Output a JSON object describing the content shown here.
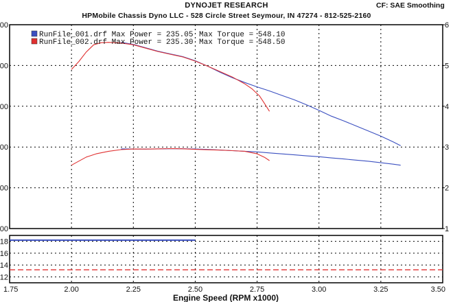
{
  "header": {
    "title": "DYNOJET RESEARCH",
    "subtitle": "HPMobile Chassis Dyno LLC - 528 Circle Street Seymour, IN 47274 - 812-525-2160",
    "correction": "CF: SAE  Smoothing"
  },
  "legend": [
    {
      "label": "RunFile_001.drf Max Power = 235.05",
      "torque": "Max Torque = 548.10",
      "color": "#3a4fc0"
    },
    {
      "label": "RunFile_002.drf Max Power = 235.30",
      "torque": "Max Torque = 548.50",
      "color": "#e03030"
    }
  ],
  "chart_data": [
    {
      "type": "line",
      "xlabel": "Engine Speed (RPM x1000)",
      "xlim": [
        1.75,
        3.5
      ],
      "x_ticks": [
        "1.75",
        "2.00",
        "2.25",
        "2.50",
        "2.75",
        "3.00",
        "3.25",
        "3.50"
      ],
      "left_ticks": [
        "00",
        "00",
        "00",
        "00",
        "00",
        "00"
      ],
      "right_ticks": [
        "6",
        "5",
        "4",
        "3",
        "2",
        "1"
      ],
      "ylim": [
        0,
        600
      ],
      "grid": true,
      "legend_position": "top-left",
      "series": [
        {
          "name": "RunFile_001.drf",
          "color": "#3a4fc0",
          "group": "torque",
          "x": [
            2.2,
            2.25,
            2.3,
            2.35,
            2.4,
            2.45,
            2.5,
            2.55,
            2.6,
            2.65,
            2.7,
            2.75,
            2.8,
            2.85,
            2.9,
            2.95,
            3.0,
            3.05,
            3.1,
            3.15,
            3.2,
            3.25,
            3.3,
            3.33
          ],
          "y": [
            548,
            542,
            532,
            522,
            514,
            506,
            494,
            478,
            460,
            444,
            430,
            417,
            405,
            392,
            379,
            364,
            348,
            331,
            317,
            302,
            287,
            272,
            255,
            244
          ]
        },
        {
          "name": "RunFile_002.drf",
          "color": "#e03030",
          "group": "torque",
          "x": [
            2.0,
            2.03,
            2.06,
            2.09,
            2.12,
            2.15,
            2.2,
            2.25,
            2.3,
            2.35,
            2.4,
            2.45,
            2.5,
            2.55,
            2.6,
            2.65,
            2.7,
            2.73,
            2.76,
            2.78,
            2.8
          ],
          "y": [
            468,
            492,
            520,
            541,
            547,
            548,
            546,
            541,
            531,
            521,
            513,
            505,
            493,
            478,
            462,
            446,
            426,
            411,
            390,
            368,
            345
          ]
        },
        {
          "name": "RunFile_001.drf",
          "color": "#3a4fc0",
          "group": "power",
          "x": [
            2.2,
            2.25,
            2.3,
            2.35,
            2.4,
            2.45,
            2.5,
            2.55,
            2.6,
            2.65,
            2.7,
            2.75,
            2.8,
            2.85,
            2.9,
            2.95,
            3.0,
            3.05,
            3.1,
            3.15,
            3.2,
            3.25,
            3.3,
            3.33
          ],
          "y": [
            234.5,
            234.2,
            234.0,
            234.6,
            235.0,
            235.05,
            234.2,
            233.0,
            231.2,
            229.3,
            227.5,
            225.6,
            222.7,
            219.8,
            216.9,
            214.0,
            211.6,
            207.8,
            204.9,
            201.5,
            198.1,
            193.7,
            189.4,
            186.5
          ]
        },
        {
          "name": "RunFile_002.drf",
          "color": "#e03030",
          "group": "power",
          "x": [
            2.0,
            2.03,
            2.06,
            2.1,
            2.15,
            2.2,
            2.25,
            2.3,
            2.35,
            2.4,
            2.45,
            2.5,
            2.55,
            2.6,
            2.65,
            2.7,
            2.75,
            2.78,
            2.8
          ],
          "y": [
            186.5,
            198.5,
            210.6,
            220.0,
            227.5,
            232.3,
            234.2,
            234.0,
            234.6,
            235.3,
            234.8,
            233.2,
            232.0,
            231.0,
            229.3,
            227.5,
            220.0,
            209.6,
            200.0
          ]
        }
      ]
    },
    {
      "type": "line",
      "left_ticks": [
        "18",
        "16",
        "14",
        "12"
      ],
      "ylim": [
        11,
        19
      ],
      "xlim": [
        1.75,
        3.5
      ],
      "grid": true,
      "series": [
        {
          "color": "#3a4fc0",
          "x": [
            1.75,
            2.5
          ],
          "y": [
            18.2,
            18.2
          ]
        },
        {
          "color": "#e03030",
          "x": [
            1.75,
            3.5
          ],
          "y": [
            13.2,
            13.2
          ],
          "dashed": true
        }
      ]
    }
  ]
}
